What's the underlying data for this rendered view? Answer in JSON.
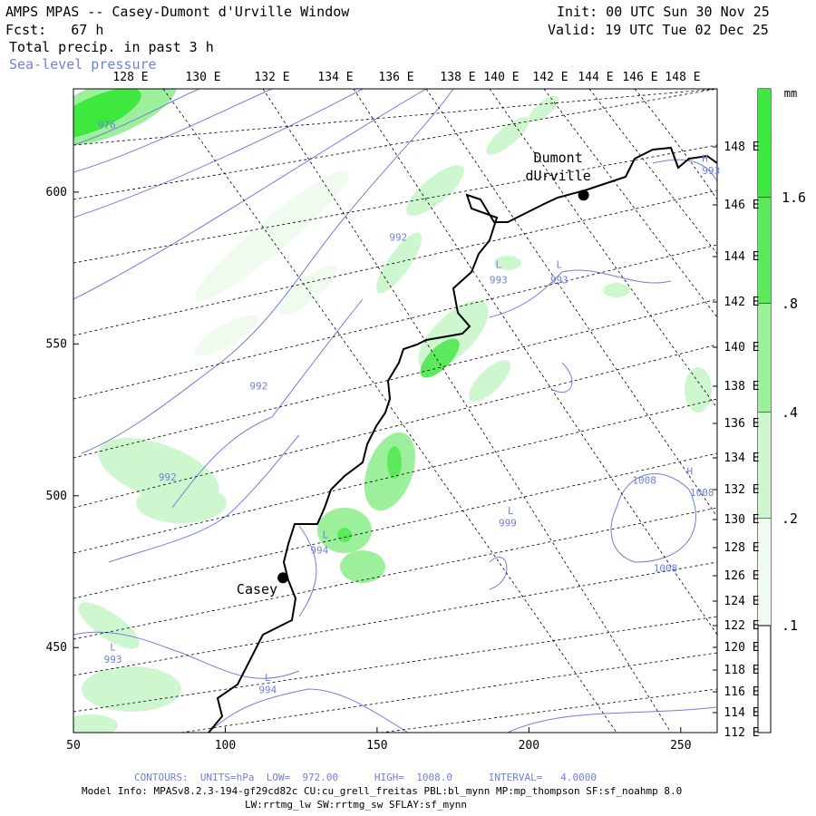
{
  "header": {
    "title": "AMPS MPAS -- Casey-Dumont d'Urville Window",
    "forecast": "Fcst:   67 h",
    "field": "Total precip. in past 3 h",
    "overlay": "Sea-level pressure",
    "init": "Init: 00 UTC Sun 30 Nov 25",
    "valid": "Valid: 19 UTC Tue 02 Dec 25"
  },
  "axes": {
    "top_labels": [
      "128 E",
      "130 E",
      "132 E",
      "134 E",
      "136 E",
      "138 E",
      "140 E",
      "142 E",
      "144 E",
      "146 E",
      "148 E"
    ],
    "right_labels": [
      "148 E",
      "146 E",
      "144 E",
      "142 E",
      "140 E",
      "138 E",
      "136 E",
      "134 E",
      "132 E",
      "130 E",
      "128 E",
      "126 E",
      "124 E",
      "122 E",
      "120 E",
      "118 E",
      "116 E",
      "114 E",
      "112 E"
    ],
    "left_labels": [
      "600",
      "550",
      "500",
      "450"
    ],
    "bottom_labels": [
      "50",
      "100",
      "150",
      "200",
      "250"
    ]
  },
  "colorbar": {
    "unit": "mm",
    "labels": [
      "1.6",
      ".8",
      ".4",
      ".2",
      ".1"
    ],
    "colors": [
      "#3ee83e",
      "#5cea5c",
      "#9cf09c",
      "#cff7cf",
      "#eefbee"
    ]
  },
  "stations": [
    {
      "name": "Casey",
      "x": 119,
      "y": 473
    },
    {
      "name": "Dumont",
      "name2": "dUrville",
      "x": 218,
      "y": 599
    }
  ],
  "pressure_labels": [
    {
      "text": "976",
      "x": 61,
      "y": 621
    },
    {
      "text": "992",
      "x": 157,
      "y": 584
    },
    {
      "text": "993",
      "x": 190,
      "y": 570
    },
    {
      "text": "993",
      "x": 210,
      "y": 570
    },
    {
      "text": "992",
      "x": 111,
      "y": 535
    },
    {
      "text": "992",
      "x": 81,
      "y": 505
    },
    {
      "text": "994",
      "x": 131,
      "y": 481
    },
    {
      "text": "999",
      "x": 193,
      "y": 490
    },
    {
      "text": "1008",
      "x": 238,
      "y": 504
    },
    {
      "text": "1008",
      "x": 257,
      "y": 500
    },
    {
      "text": "1008",
      "x": 245,
      "y": 475
    },
    {
      "text": "993",
      "x": 63,
      "y": 445
    },
    {
      "text": "994",
      "x": 114,
      "y": 435
    },
    {
      "text": "993",
      "x": 260,
      "y": 606
    }
  ],
  "pressure_marks": [
    {
      "text": "L",
      "x": 190,
      "y": 575
    },
    {
      "text": "L",
      "x": 210,
      "y": 575
    },
    {
      "text": "L",
      "x": 133,
      "y": 486
    },
    {
      "text": "L",
      "x": 194,
      "y": 494
    },
    {
      "text": "H",
      "x": 253,
      "y": 507
    },
    {
      "text": "L",
      "x": 63,
      "y": 449
    },
    {
      "text": "L",
      "x": 114,
      "y": 439
    },
    {
      "text": "H",
      "x": 258,
      "y": 610
    }
  ],
  "footer": {
    "contours": "CONTOURS:  UNITS=hPa  LOW=  972.00      HIGH=  1008.0      INTERVAL=   4.0000",
    "model1": "Model Info: MPASv8.2.3-194-gf29cd82c CU:cu_grell_freitas PBL:bl_mynn MP:mp_thompson SF:sf_noahmp 8.0",
    "model2": "LW:rrtmg_lw SW:rrtmg_sw SFLAY:sf_mynn"
  },
  "slp_contour": {
    "units": "hPa",
    "low": 972.0,
    "high": 1008.0,
    "interval": 4.0
  }
}
